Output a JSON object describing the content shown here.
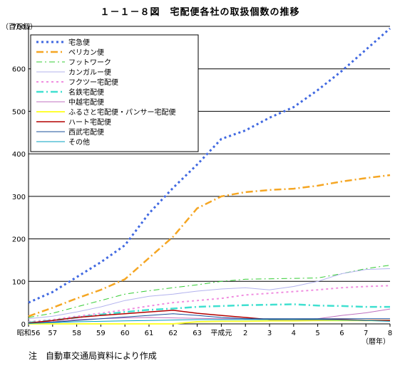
{
  "title": "１－１－８図　宅配便各社の取扱個数の推移",
  "note": "注　自動車交通局資料により作成",
  "chart_data": {
    "type": "line",
    "ylabel": "（百万個）",
    "xlabel": "（暦年）",
    "ylim": [
      0,
      700
    ],
    "yticks": [
      0,
      100,
      200,
      300,
      400,
      500,
      600,
      700
    ],
    "grid": true,
    "legend_position": "top-left",
    "categories": [
      "昭和56",
      "57",
      "58",
      "59",
      "60",
      "61",
      "62",
      "63",
      "平成元",
      "2",
      "3",
      "4",
      "5",
      "6",
      "7",
      "8"
    ],
    "series": [
      {
        "name": "宅急便",
        "color": "#4169e1",
        "dash": "3,4",
        "width": 3,
        "values": [
          50,
          75,
          110,
          145,
          185,
          260,
          320,
          375,
          435,
          455,
          485,
          510,
          550,
          595,
          645,
          695
        ]
      },
      {
        "name": "ペリカン便",
        "color": "#f5a623",
        "dash": "10,4,2,4",
        "width": 2.5,
        "values": [
          18,
          38,
          60,
          80,
          105,
          155,
          205,
          272,
          300,
          310,
          315,
          318,
          325,
          335,
          343,
          350
        ]
      },
      {
        "name": "フットワーク",
        "color": "#33cc33",
        "dash": "8,4,2,4",
        "width": 1,
        "values": [
          15,
          25,
          40,
          55,
          70,
          78,
          85,
          92,
          100,
          105,
          106,
          107,
          108,
          118,
          130,
          138
        ]
      },
      {
        "name": "カンガルー便",
        "color": "#b3b3ee",
        "dash": "",
        "width": 1,
        "values": [
          12,
          18,
          28,
          40,
          55,
          65,
          70,
          77,
          82,
          85,
          80,
          88,
          100,
          118,
          128,
          130
        ]
      },
      {
        "name": "フクツー宅配便",
        "color": "#f08ee0",
        "dash": "3,4",
        "width": 2,
        "values": [
          5,
          10,
          18,
          25,
          33,
          42,
          50,
          55,
          60,
          68,
          72,
          76,
          80,
          85,
          88,
          90
        ]
      },
      {
        "name": "名鉄宅配便",
        "color": "#40e0d0",
        "dash": "10,4,2,4",
        "width": 2.5,
        "values": [
          3,
          8,
          15,
          22,
          28,
          33,
          36,
          40,
          42,
          44,
          45,
          46,
          43,
          42,
          40,
          40
        ]
      },
      {
        "name": "中越宅配便",
        "color": "#c071c0",
        "dash": "",
        "width": 1,
        "values": [
          2,
          5,
          10,
          12,
          14,
          15,
          14,
          13,
          12,
          12,
          11,
          10,
          12,
          20,
          26,
          35
        ]
      },
      {
        "name": "ふるさと宅配便・パンサー宅配便",
        "color": "#ffff33",
        "dash": "",
        "width": 2,
        "values": [
          0,
          0,
          0,
          0,
          0,
          0,
          0,
          5,
          6,
          6,
          7,
          7,
          8,
          8,
          8,
          8
        ]
      },
      {
        "name": "ハート宅配便",
        "color": "#b30000",
        "dash": "",
        "width": 1.5,
        "values": [
          2,
          8,
          15,
          20,
          24,
          28,
          32,
          25,
          20,
          15,
          10,
          10,
          10,
          10,
          8,
          8
        ]
      },
      {
        "name": "西武宅配便",
        "color": "#1a4f99",
        "dash": "",
        "width": 1,
        "values": [
          1,
          4,
          8,
          12,
          16,
          20,
          24,
          20,
          15,
          12,
          12,
          12,
          12,
          12,
          12,
          12
        ]
      },
      {
        "name": "その他",
        "color": "#00a0c0",
        "dash": "",
        "width": 1,
        "values": [
          1,
          3,
          5,
          6,
          7,
          8,
          9,
          10,
          10,
          10,
          10,
          10,
          10,
          9,
          8,
          6
        ]
      }
    ]
  }
}
